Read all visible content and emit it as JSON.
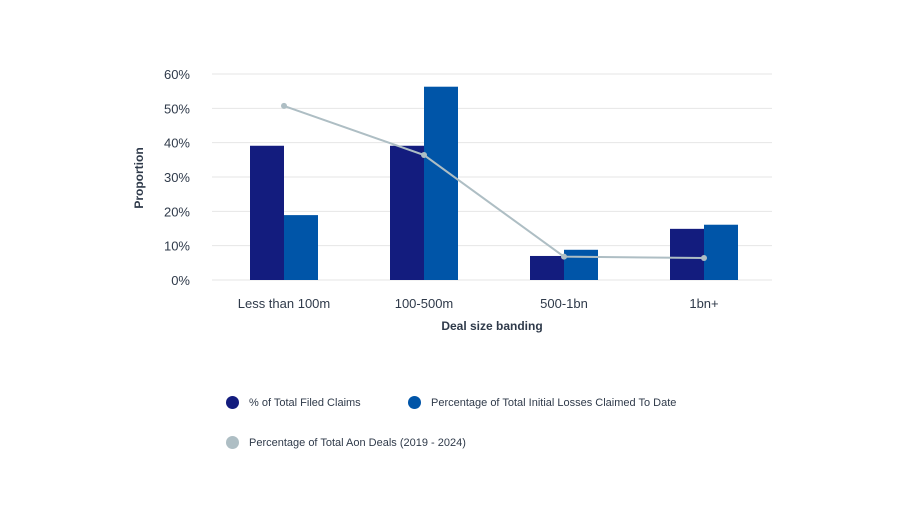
{
  "chart_data": {
    "type": "bar",
    "title": "",
    "xlabel": "Deal size banding",
    "ylabel": "Proportion",
    "categories": [
      "Less than 100m",
      "100-500m",
      "500-1bn",
      "1bn+"
    ],
    "ylim": [
      0,
      60
    ],
    "yticks": [
      "0%",
      "10%",
      "20%",
      "30%",
      "40%",
      "50%",
      "60%"
    ],
    "grid": true,
    "legend_position": "bottom",
    "series": [
      {
        "name": "% of Total Filed Claims",
        "type": "bar",
        "color": "#131c7e",
        "values": [
          39.1,
          39.1,
          7.0,
          14.9
        ]
      },
      {
        "name": "Percentage of Total Initial Losses Claimed To Date",
        "type": "bar",
        "color": "#0055a8",
        "values": [
          18.9,
          56.3,
          8.8,
          16.1
        ]
      },
      {
        "name": "Percentage of Total Aon Deals (2019 - 2024)",
        "type": "line",
        "color": "#aebec4",
        "values": [
          50.7,
          36.4,
          6.8,
          6.4
        ]
      }
    ]
  },
  "legend": {
    "items": [
      {
        "label": "% of Total Filed Claims",
        "color": "#131c7e"
      },
      {
        "label": "Percentage of Total Initial Losses Claimed To Date",
        "color": "#0055a8"
      },
      {
        "label": "Percentage of Total Aon Deals (2019 - 2024)",
        "color": "#aebec4"
      }
    ]
  }
}
